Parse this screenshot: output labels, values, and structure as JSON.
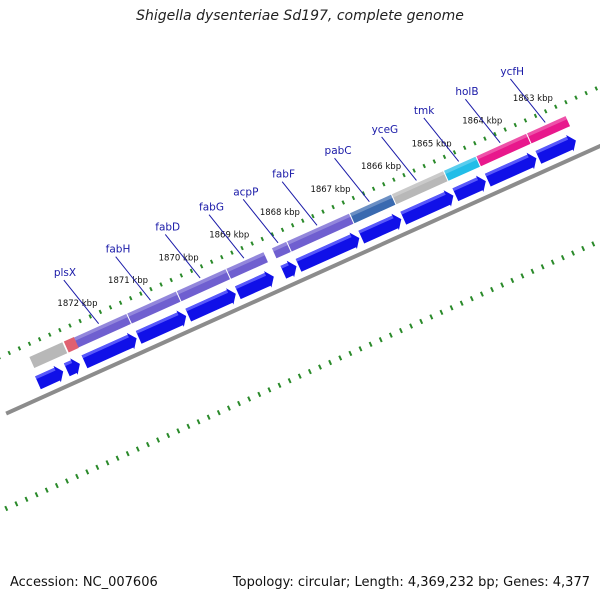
{
  "title": "Shigella dysenteriae Sd197, complete genome",
  "footer": {
    "accession": "Accession: NC_007606",
    "summary": "Topology: circular; Length: 4,369,232 bp; Genes: 4,377"
  },
  "colors": {
    "background": "#ffffff",
    "gene_label": "#1a1aa8",
    "cds_arrow": "#1010e8",
    "backbone": "#8c8c8c",
    "tick": "#2a8a2a",
    "feature_purple": "#6f5fd0",
    "feature_gray": "#b8b8b8",
    "feature_pink": "#e8188c",
    "feature_cyan": "#22bde8",
    "feature_navy": "#1a1a90",
    "feature_red": "#e06070",
    "feature_steel": "#3a6ab0"
  },
  "scale_labels": [
    {
      "text": "1863 kbp",
      "kbp": 1863
    },
    {
      "text": "1864 kbp",
      "kbp": 1864
    },
    {
      "text": "1865 kbp",
      "kbp": 1865
    },
    {
      "text": "1866 kbp",
      "kbp": 1866
    },
    {
      "text": "1867 kbp",
      "kbp": 1867
    },
    {
      "text": "1868 kbp",
      "kbp": 1868
    },
    {
      "text": "1869 kbp",
      "kbp": 1869
    },
    {
      "text": "1870 kbp",
      "kbp": 1870
    },
    {
      "text": "1871 kbp",
      "kbp": 1871
    },
    {
      "text": "1872 kbp",
      "kbp": 1872
    }
  ],
  "genes": [
    {
      "name": "ycfH",
      "start": 1862.6,
      "end": 1863.38,
      "color": "feature_pink"
    },
    {
      "name": "holB",
      "start": 1863.38,
      "end": 1864.38,
      "color": "feature_pink"
    },
    {
      "name": "tmk",
      "start": 1864.38,
      "end": 1865.02,
      "color": "feature_cyan"
    },
    {
      "name": "yceG",
      "start": 1865.02,
      "end": 1866.05,
      "color": "feature_gray"
    },
    {
      "name": "pabC",
      "start": 1866.05,
      "end": 1866.88,
      "color": "feature_steel"
    },
    {
      "name": "fabF",
      "start": 1866.88,
      "end": 1868.12,
      "color": "feature_purple"
    },
    {
      "name": "acpP",
      "start": 1868.12,
      "end": 1868.42,
      "color": "feature_purple"
    },
    {
      "name": "fabG",
      "start": 1868.57,
      "end": 1869.32,
      "color": "feature_purple"
    },
    {
      "name": "fabD",
      "start": 1869.32,
      "end": 1870.3,
      "color": "feature_purple"
    },
    {
      "name": "fabH",
      "start": 1870.3,
      "end": 1871.28,
      "color": "feature_purple"
    },
    {
      "name": "plsX",
      "start": 1871.28,
      "end": 1872.35,
      "color": "feature_purple"
    }
  ]
}
